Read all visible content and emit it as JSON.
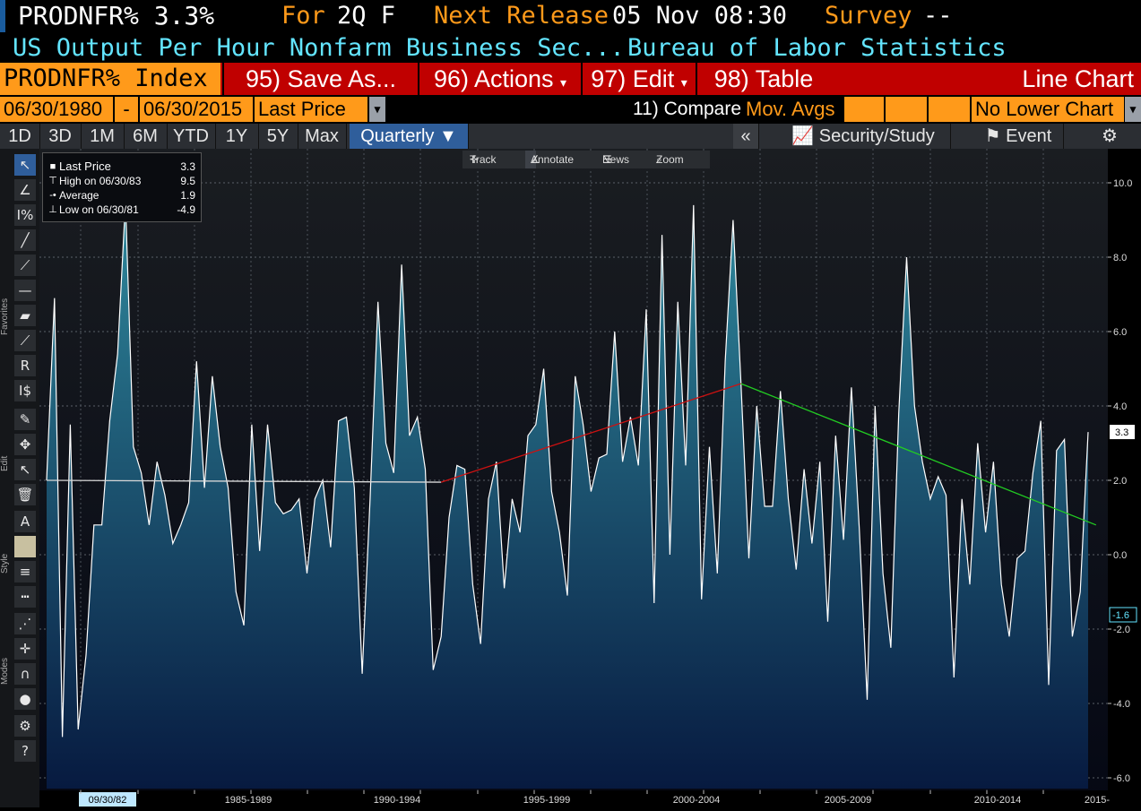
{
  "header": {
    "ticker": "PRODNFR%",
    "value": "3.3%",
    "for_label": "For",
    "for_value": "2Q F",
    "next_release_label": "Next Release",
    "next_release_value": "05 Nov 08:30",
    "survey_label": "Survey",
    "survey_value": "--",
    "description": "US Output Per Hour Nonfarm Business Sec...",
    "source": "Bureau of Labor Statistics"
  },
  "toolbar": {
    "index": "PRODNFR% Index",
    "save_as": "95) Save As...",
    "actions": "96) Actions",
    "edit": "97) Edit",
    "table": "98) Table",
    "view": "Line Chart"
  },
  "range": {
    "start": "06/30/1980",
    "dash": "-",
    "end": "06/30/2015",
    "field": "Last Price",
    "compare": "11) Compare",
    "mov_avgs": "Mov. Avgs",
    "lower_chart": "No Lower Chart"
  },
  "periods": {
    "buttons": [
      "1D",
      "3D",
      "1M",
      "6M",
      "YTD",
      "1Y",
      "5Y",
      "Max"
    ],
    "frequency": "Quarterly",
    "collapse": "«",
    "security_study": "Security/Study",
    "event": "Event"
  },
  "sidebar": {
    "favorites": "Favorites",
    "edit": "Edit",
    "style": "Style",
    "modes": "Modes"
  },
  "legend": {
    "last_price_label": "Last Price",
    "last_price_value": "3.3",
    "high_label": "High on 06/30/83",
    "high_value": "9.5",
    "average_label": "Average",
    "average_value": "1.9",
    "low_label": "Low on 06/30/81",
    "low_value": "-4.9"
  },
  "mini_toolbar": {
    "track": "Track",
    "annotate": "Annotate",
    "news": "News",
    "zoom": "Zoom"
  },
  "colors": {
    "orange": "#ff9a1a",
    "red_toolbar": "#c00000",
    "cyan_text": "#63e5ff",
    "series_line": "#ffffff",
    "trend_white": "#d8d8d8",
    "trend_red": "#cc1111",
    "trend_green": "#22cc22"
  },
  "chart_data": {
    "type": "area",
    "series": [
      {
        "values": [
          2.0,
          6.9,
          -4.9,
          3.5,
          -4.7,
          -2.7,
          0.8,
          0.8,
          3.6,
          5.4,
          9.5,
          2.9,
          2.2,
          0.8,
          2.5,
          1.6,
          0.3,
          0.8,
          1.4,
          5.2,
          1.8,
          4.8,
          2.9,
          1.8,
          -1.0,
          -1.9,
          3.5,
          0.1,
          3.5,
          1.4,
          1.1,
          1.2,
          1.5,
          -0.5,
          1.5,
          2.0,
          0.2,
          3.6,
          3.7,
          1.8,
          -3.2,
          1.5,
          6.8,
          3.0,
          2.2,
          7.8,
          3.2,
          3.7,
          2.3,
          -3.1,
          -2.2,
          1.0,
          2.4,
          2.3,
          -0.8,
          -2.4,
          1.5,
          2.5,
          -0.9,
          1.5,
          0.6,
          3.2,
          3.5,
          5.0,
          1.7,
          0.6,
          -1.1,
          4.8,
          3.5,
          1.7,
          2.6,
          2.7,
          6.0,
          2.5,
          3.7,
          2.4,
          6.6,
          -1.3,
          8.6,
          0.0,
          6.8,
          2.4,
          9.4,
          -1.2,
          2.9,
          -0.5,
          5.2,
          9.0,
          4.6,
          -0.1,
          4.0,
          1.3,
          1.3,
          4.4,
          1.5,
          -0.4,
          2.3,
          0.3,
          2.5,
          -1.8,
          3.2,
          0.4,
          4.5,
          0.7,
          -3.9,
          4.0,
          -0.5,
          -2.5,
          3.8,
          8.0,
          4.0,
          2.5,
          1.5,
          2.1,
          1.6,
          -3.3,
          1.5,
          -0.8,
          3.0,
          0.6,
          2.5,
          -0.8,
          -2.2,
          -0.1,
          0.1,
          2.2,
          3.6,
          -3.5,
          2.8,
          3.1,
          -2.2,
          -1.0,
          3.3
        ]
      }
    ],
    "x_labels": [
      "09/30/82",
      "1985-1989",
      "1990-1994",
      "1995-1999",
      "2000-2004",
      "2005-2009",
      "2010-2014",
      "2015-"
    ],
    "y_ticks": [
      "10.0",
      "8.0",
      "6.0",
      "4.0",
      "2.0",
      "0.0",
      "-2.0",
      "-4.0",
      "-6.0"
    ],
    "ylim": [
      -6.0,
      10.0
    ],
    "last_value_label": "3.3",
    "trend_value_label": "-1.6",
    "trendlines": [
      {
        "color": "white",
        "from": [
          0,
          2.0
        ],
        "to": [
          50,
          1.95
        ]
      },
      {
        "color": "red",
        "from": [
          50,
          1.95
        ],
        "to": [
          88,
          4.6
        ]
      },
      {
        "color": "green",
        "from": [
          88,
          4.6
        ],
        "to": [
          133,
          0.8
        ]
      }
    ],
    "grid": true
  }
}
